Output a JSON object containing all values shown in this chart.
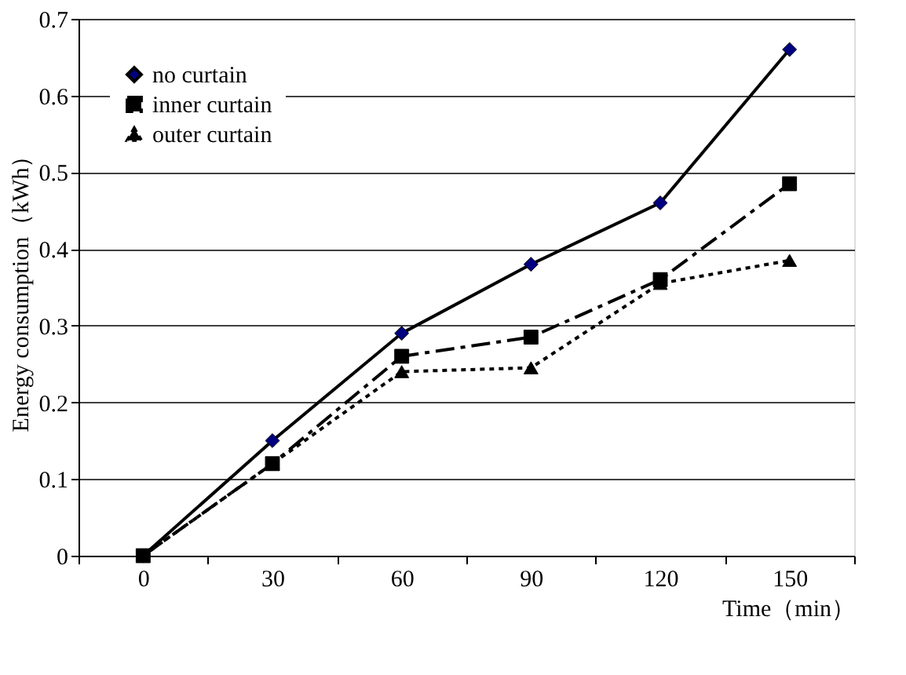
{
  "chart_data": {
    "type": "line",
    "xlabel": "Time（min）",
    "ylabel": "Energy consumption（kWh）",
    "categories": [
      "0",
      "30",
      "60",
      "90",
      "120",
      "150"
    ],
    "series": [
      {
        "name": "no curtain",
        "color": "#000080",
        "marker": "diamond",
        "line_style": "solid",
        "values": [
          0,
          0.15,
          0.29,
          0.38,
          0.46,
          0.66
        ]
      },
      {
        "name": "inner curtain",
        "color": "#000000",
        "marker": "square",
        "line_style": "dashed",
        "values": [
          0,
          0.12,
          0.26,
          0.285,
          0.36,
          0.485
        ]
      },
      {
        "name": "outer curtain",
        "color": "#000000",
        "marker": "triangle",
        "line_style": "dotted",
        "values": [
          0,
          0.12,
          0.24,
          0.245,
          0.355,
          0.385
        ]
      }
    ],
    "ylim": [
      0,
      0.7
    ],
    "yticks": [
      0,
      0.1,
      0.2,
      0.3,
      0.4,
      0.5,
      0.6,
      0.7
    ],
    "grid": "y",
    "legend": "top left"
  }
}
